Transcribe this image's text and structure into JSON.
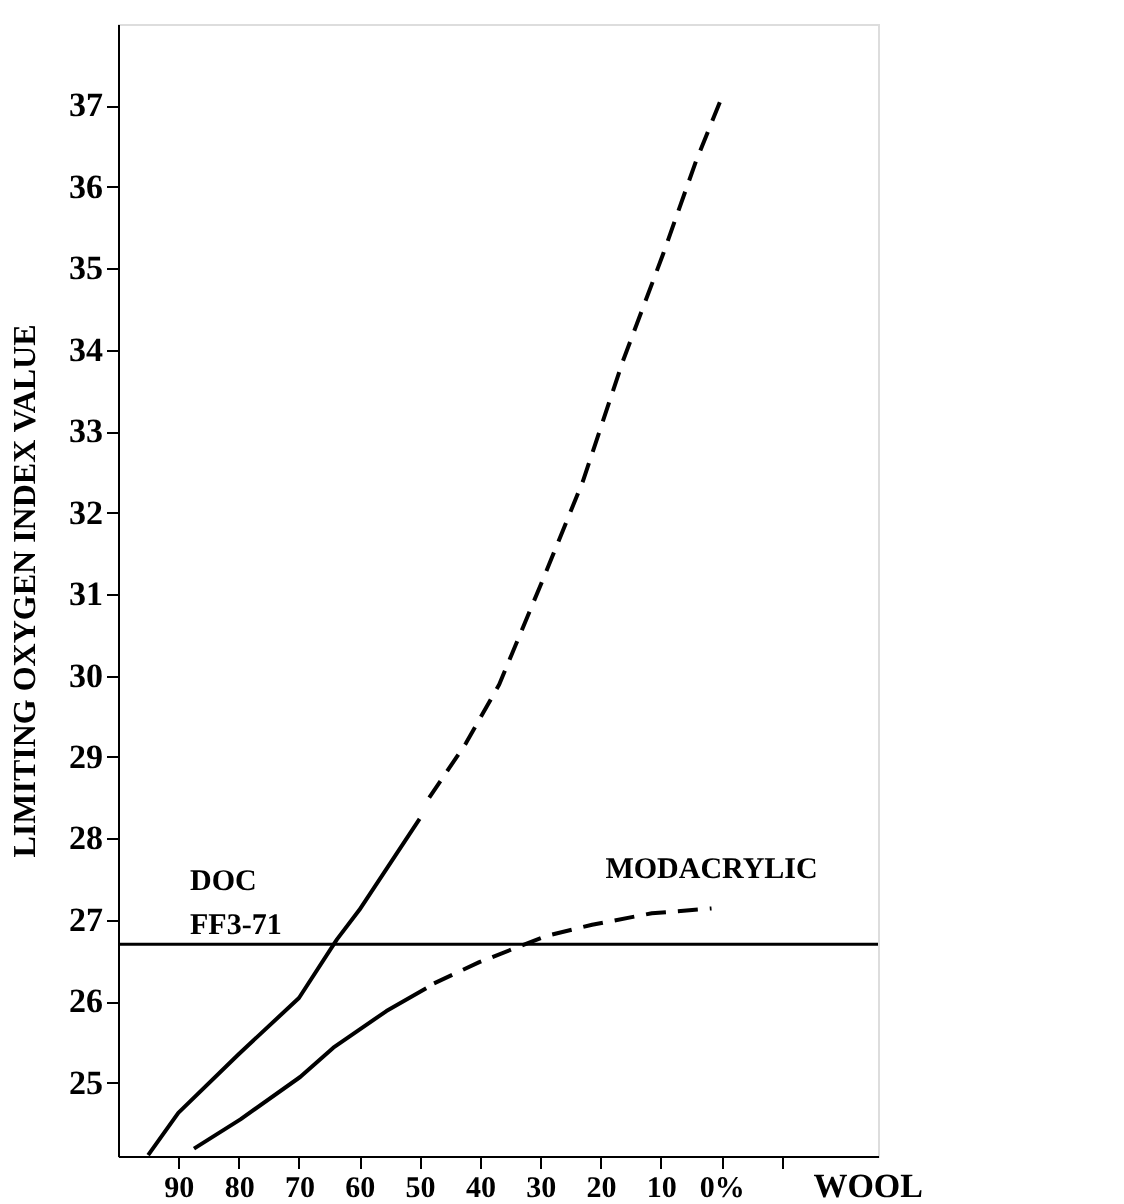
{
  "chart_data": {
    "type": "line",
    "ylabel": "LIMITING OXYGEN INDEX VALUE",
    "xlabel": "WOOL",
    "xlim": [
      100,
      -26
    ],
    "xticks": [
      90,
      80,
      70,
      60,
      50,
      40,
      30,
      20,
      10,
      {
        "value": 0,
        "label": "0%"
      },
      {
        "value": -10,
        "label": null
      }
    ],
    "ylim": [
      24.1,
      38.0
    ],
    "yticks": [
      25,
      26,
      27,
      28,
      29,
      30,
      31,
      32,
      33,
      34,
      35,
      36,
      37
    ],
    "marker": "none",
    "ref_lines": [
      {
        "axis": "y",
        "value": 26.7,
        "label": "DOC FF3-71",
        "color": "#000000"
      }
    ],
    "series": [
      {
        "color": "#000000",
        "line_style": "solid",
        "x": [
          95,
          90,
          80,
          70,
          63.7,
          60,
          50
        ],
        "values": [
          24.11,
          24.63,
          25.35,
          26.04,
          26.76,
          27.12,
          28.24
        ]
      },
      {
        "color": "#000000",
        "line_style": "dashed",
        "x": [
          48.4,
          42.3,
          36.8,
          29.1,
          22.9,
          16.3,
          9.7,
          4.2,
          0
        ],
        "values": [
          28.5,
          29.17,
          29.89,
          31.26,
          32.39,
          33.86,
          35.16,
          36.31,
          37.08
        ]
      },
      {
        "color": "#000000",
        "line_style": "solid",
        "x": [
          87.4,
          79.7,
          69.8,
          64.3,
          55.5,
          48.9
        ],
        "values": [
          24.19,
          24.55,
          25.07,
          25.43,
          25.88,
          26.16
        ]
      },
      {
        "name": "MODACRYLIC",
        "color": "#000000",
        "line_style": "dashed",
        "x": [
          47.6,
          40.1,
          34.6,
          29.1,
          21.4,
          11.5,
          1.6
        ],
        "values": [
          26.22,
          26.48,
          26.64,
          26.8,
          26.94,
          27.08,
          27.14
        ]
      }
    ]
  }
}
